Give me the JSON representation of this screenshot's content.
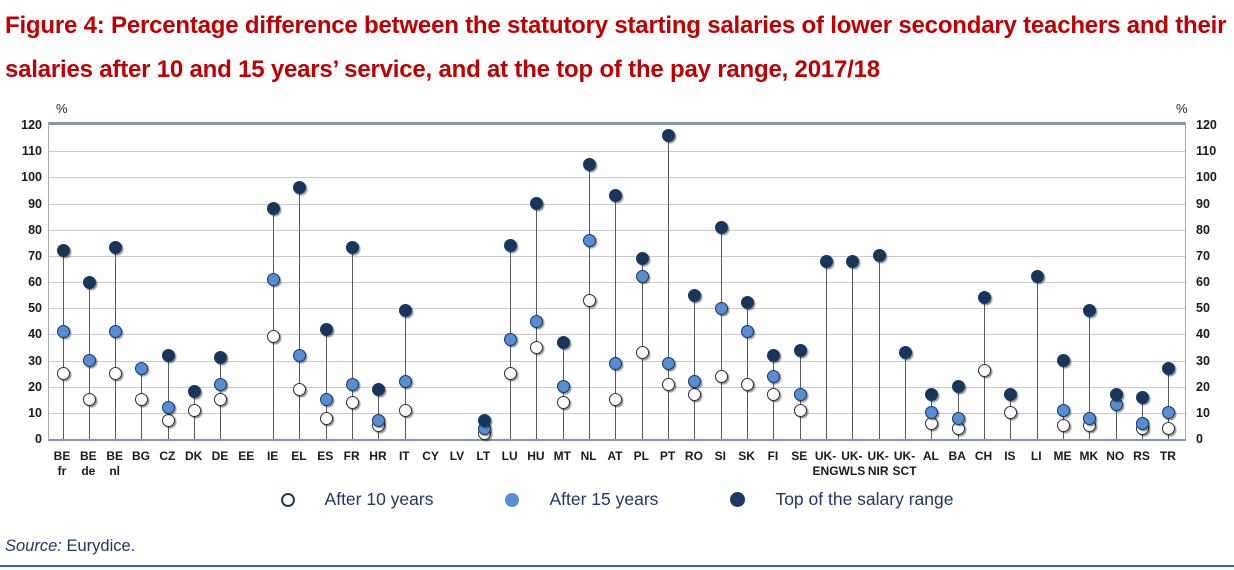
{
  "figure": {
    "title": "Figure 4: Percentage difference between the statutory starting salaries of lower secondary teachers and their salaries after 10 and 15 years’ service, and at the top of the pay range, 2017/18"
  },
  "source": {
    "label": "Source:",
    "text": "Eurydice."
  },
  "colors": {
    "title_red": "#C00000",
    "series_navy": "#17365D",
    "series_blue": "#558ED5",
    "open_circle_fill": "#FFFFFF",
    "gridline": "#C9C9C9",
    "plot_border": "#8496B0",
    "stem": "#5A5A5A",
    "legend_text_navy": "#1F3864",
    "bottom_rule_blue": "#3B66A0"
  },
  "chart_data": {
    "type": "scatter",
    "style": "lollipop-dot",
    "title": "Percentage difference between the statutory starting salaries of lower secondary teachers and their salaries after 10 and 15 years’ service, and at the top of the pay range, 2017/18",
    "unit": "%",
    "ylim": [
      0,
      120
    ],
    "ytick_step": 10,
    "grid": true,
    "tick_labels_both_sides": true,
    "legend_position": "bottom",
    "categories": [
      {
        "label": "BE",
        "sub": "fr"
      },
      {
        "label": "BE",
        "sub": "de"
      },
      {
        "label": "BE",
        "sub": "nl"
      },
      {
        "label": "BG",
        "sub": ""
      },
      {
        "label": "CZ",
        "sub": ""
      },
      {
        "label": "DK",
        "sub": ""
      },
      {
        "label": "DE",
        "sub": ""
      },
      {
        "label": "EE",
        "sub": ""
      },
      {
        "label": "IE",
        "sub": ""
      },
      {
        "label": "EL",
        "sub": ""
      },
      {
        "label": "ES",
        "sub": ""
      },
      {
        "label": "FR",
        "sub": ""
      },
      {
        "label": "HR",
        "sub": ""
      },
      {
        "label": "IT",
        "sub": ""
      },
      {
        "label": "CY",
        "sub": ""
      },
      {
        "label": "LV",
        "sub": ""
      },
      {
        "label": "LT",
        "sub": ""
      },
      {
        "label": "LU",
        "sub": ""
      },
      {
        "label": "HU",
        "sub": ""
      },
      {
        "label": "MT",
        "sub": ""
      },
      {
        "label": "NL",
        "sub": ""
      },
      {
        "label": "AT",
        "sub": ""
      },
      {
        "label": "PL",
        "sub": ""
      },
      {
        "label": "PT",
        "sub": ""
      },
      {
        "label": "RO",
        "sub": ""
      },
      {
        "label": "SI",
        "sub": ""
      },
      {
        "label": "SK",
        "sub": ""
      },
      {
        "label": "FI",
        "sub": ""
      },
      {
        "label": "SE",
        "sub": ""
      },
      {
        "label": "UK-",
        "sub": "ENG"
      },
      {
        "label": "UK-",
        "sub": "WLS"
      },
      {
        "label": "UK-",
        "sub": "NIR"
      },
      {
        "label": "UK-",
        "sub": "SCT"
      },
      {
        "label": "AL",
        "sub": ""
      },
      {
        "label": "BA",
        "sub": ""
      },
      {
        "label": "CH",
        "sub": ""
      },
      {
        "label": "IS",
        "sub": ""
      },
      {
        "label": "LI",
        "sub": ""
      },
      {
        "label": "ME",
        "sub": ""
      },
      {
        "label": "MK",
        "sub": ""
      },
      {
        "label": "NO",
        "sub": ""
      },
      {
        "label": "RS",
        "sub": ""
      },
      {
        "label": "TR",
        "sub": ""
      }
    ],
    "series": [
      {
        "name": "After 10 years",
        "marker": "open-circle",
        "color": "#FFFFFF",
        "values": [
          25,
          15,
          25,
          15,
          7,
          11,
          15,
          null,
          39,
          19,
          8,
          14,
          5,
          11,
          null,
          null,
          2,
          25,
          35,
          14,
          53,
          15,
          33,
          21,
          17,
          24,
          21,
          17,
          11,
          null,
          null,
          null,
          null,
          6,
          4,
          26,
          10,
          null,
          5,
          5,
          null,
          4,
          4
        ]
      },
      {
        "name": "After 15 years",
        "marker": "filled-circle",
        "color": "#558ED5",
        "values": [
          41,
          30,
          41,
          27,
          12,
          null,
          21,
          null,
          61,
          32,
          15,
          21,
          7,
          22,
          null,
          null,
          4,
          38,
          45,
          20,
          76,
          29,
          62,
          29,
          22,
          50,
          41,
          24,
          17,
          null,
          null,
          null,
          null,
          10,
          8,
          null,
          null,
          null,
          11,
          8,
          13,
          6,
          10
        ]
      },
      {
        "name": "Top of the salary range",
        "marker": "filled-circle",
        "color": "#17365D",
        "values": [
          72,
          60,
          73,
          null,
          32,
          18,
          31,
          null,
          88,
          96,
          42,
          73,
          19,
          49,
          null,
          null,
          7,
          74,
          90,
          37,
          105,
          93,
          69,
          116,
          55,
          81,
          52,
          32,
          34,
          68,
          68,
          70,
          33,
          17,
          20,
          54,
          17,
          62,
          30,
          49,
          17,
          16,
          27
        ]
      }
    ]
  }
}
